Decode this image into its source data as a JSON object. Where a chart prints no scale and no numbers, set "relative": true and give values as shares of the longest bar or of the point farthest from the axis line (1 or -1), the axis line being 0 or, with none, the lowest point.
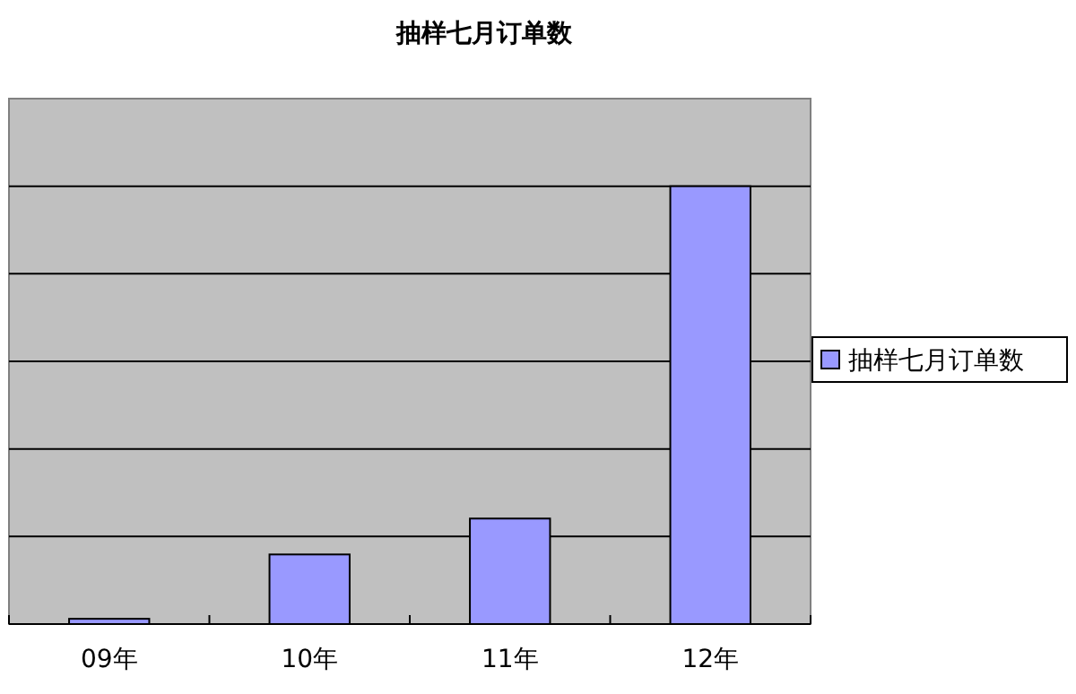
{
  "chart_data": {
    "type": "bar",
    "title": "抽样七月订单数",
    "categories": [
      "09年",
      "10年",
      "11年",
      "12年"
    ],
    "series": [
      {
        "name": "抽样七月订单数",
        "color": "#9999ff",
        "values": [
          0.012,
          0.159,
          0.241,
          1
        ]
      }
    ],
    "relative": true,
    "grid": "y",
    "legend": "right"
  }
}
